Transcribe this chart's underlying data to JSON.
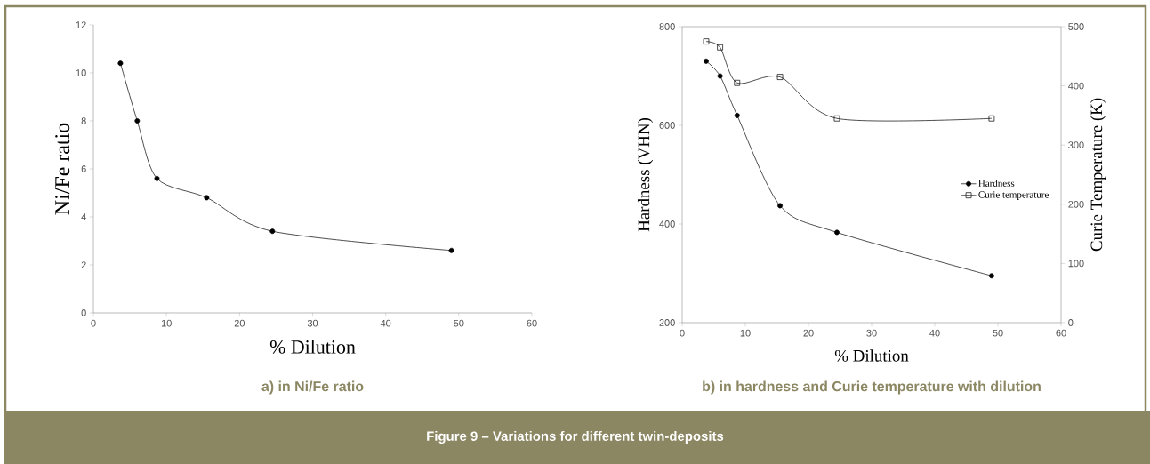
{
  "chart_data": [
    {
      "type": "line",
      "title": "a) in Ni/Fe ratio",
      "xlabel": "% Dilution",
      "ylabel": "Ni/Fe ratio",
      "x": [
        3.7,
        6,
        8.7,
        15.5,
        24.5,
        49
      ],
      "values": [
        10.4,
        8.0,
        5.6,
        4.8,
        3.4,
        2.6
      ],
      "color": "#000000",
      "marker": "circle",
      "xlim": [
        0,
        60
      ],
      "xticks": [
        0,
        10,
        20,
        30,
        40,
        50,
        60
      ],
      "ylim": [
        0,
        12
      ],
      "yticks": [
        0,
        2,
        4,
        6,
        8,
        10,
        12
      ],
      "annotations": [
        "Figure 9 – Variations for different twin-deposits"
      ]
    },
    {
      "type": "line",
      "title": "b) in hardness and Curie temperature with dilution",
      "xlabel": "% Dilution",
      "ylabel": "Hardness (VHN)",
      "y2label": "Curie Temperature (K)",
      "x": [
        3.8,
        6,
        8.7,
        15.5,
        24.5,
        49
      ],
      "series": [
        {
          "name": "Hardness",
          "color": "#000000",
          "marker": "circle",
          "values": [
            730,
            700,
            620,
            437,
            383,
            295
          ]
        },
        {
          "name": "Curie temperature",
          "color": "#000000",
          "marker": "square",
          "axis": "y2",
          "values": [
            475,
            465,
            405,
            415,
            345,
            345
          ]
        }
      ],
      "xlim": [
        0,
        60
      ],
      "xticks": [
        0,
        10,
        20,
        30,
        40,
        50,
        60
      ],
      "ylim": [
        200,
        800
      ],
      "yticks": [
        200,
        400,
        600,
        800
      ],
      "y2lim": [
        0,
        500
      ],
      "y2ticks": [
        0,
        100,
        200,
        300,
        400,
        500
      ],
      "legend": "right"
    }
  ]
}
